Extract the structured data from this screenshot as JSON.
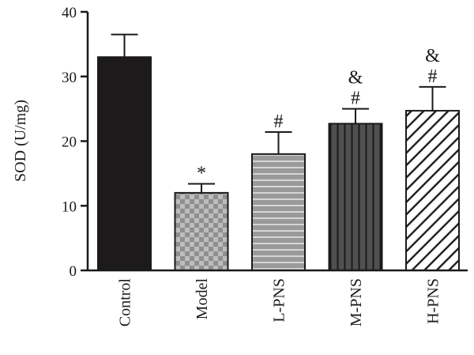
{
  "chart_data": {
    "type": "bar",
    "ylabel": "SOD (U/mg)",
    "ylim": [
      0,
      40
    ],
    "yticks": [
      0,
      10,
      20,
      30,
      40
    ],
    "categories": [
      "Control",
      "Model",
      "L-PNS",
      "M-PNS",
      "H-PNS"
    ],
    "values": [
      33.0,
      12.0,
      18.0,
      22.7,
      24.7
    ],
    "errors": [
      3.5,
      1.4,
      3.4,
      2.3,
      3.7
    ],
    "annotations": [
      [],
      [
        "*"
      ],
      [
        "#"
      ],
      [
        "#",
        "&"
      ],
      [
        "#",
        "&"
      ]
    ],
    "patterns": [
      "solid-black",
      "checkerboard",
      "horizontal-lines",
      "vertical-lines",
      "diagonal-lines"
    ],
    "colors": {
      "control": "#1c1a1b",
      "model_light": "#bdbdbd",
      "model_dark": "#8f8f8f",
      "lpns": "#9a9a9a",
      "mpns": "#505050",
      "hpns_bg": "#ffffff",
      "stroke": "#1a1a1a"
    },
    "grid": false,
    "legend": "none"
  }
}
